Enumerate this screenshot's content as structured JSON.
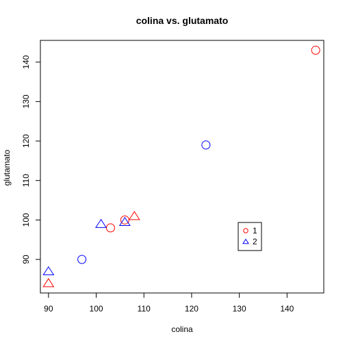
{
  "chart_data": {
    "type": "scatter",
    "title": "colina vs. glutamato",
    "xlabel": "colina",
    "ylabel": "glutamato",
    "xlim": [
      88.3,
      147.7
    ],
    "ylim": [
      81.5,
      145.5
    ],
    "x_ticks": [
      90,
      100,
      110,
      120,
      130,
      140
    ],
    "y_ticks": [
      90,
      100,
      110,
      120,
      130,
      140
    ],
    "grid": false,
    "legend_position": "inside right, near bottom",
    "series": [
      {
        "name": "1",
        "color": "#ff0000",
        "marker": "circle",
        "points": [
          {
            "x": 146,
            "y": 143
          },
          {
            "x": 103,
            "y": 98
          },
          {
            "x": 106,
            "y": 100
          }
        ]
      },
      {
        "name": "1",
        "color": "#ff0000",
        "marker": "triangle",
        "points": [
          {
            "x": 108,
            "y": 101
          },
          {
            "x": 90,
            "y": 84
          }
        ]
      },
      {
        "name": "2",
        "color": "#0000ff",
        "marker": "circle",
        "points": [
          {
            "x": 123,
            "y": 119
          },
          {
            "x": 97,
            "y": 90
          }
        ]
      },
      {
        "name": "2",
        "color": "#0000ff",
        "marker": "triangle",
        "points": [
          {
            "x": 101,
            "y": 99
          },
          {
            "x": 106,
            "y": 99.5
          },
          {
            "x": 90,
            "y": 87
          }
        ]
      }
    ],
    "legend": [
      {
        "label": "1",
        "color": "#ff0000",
        "marker": "circle"
      },
      {
        "label": "2",
        "color": "#0000ff",
        "marker": "triangle"
      }
    ]
  }
}
